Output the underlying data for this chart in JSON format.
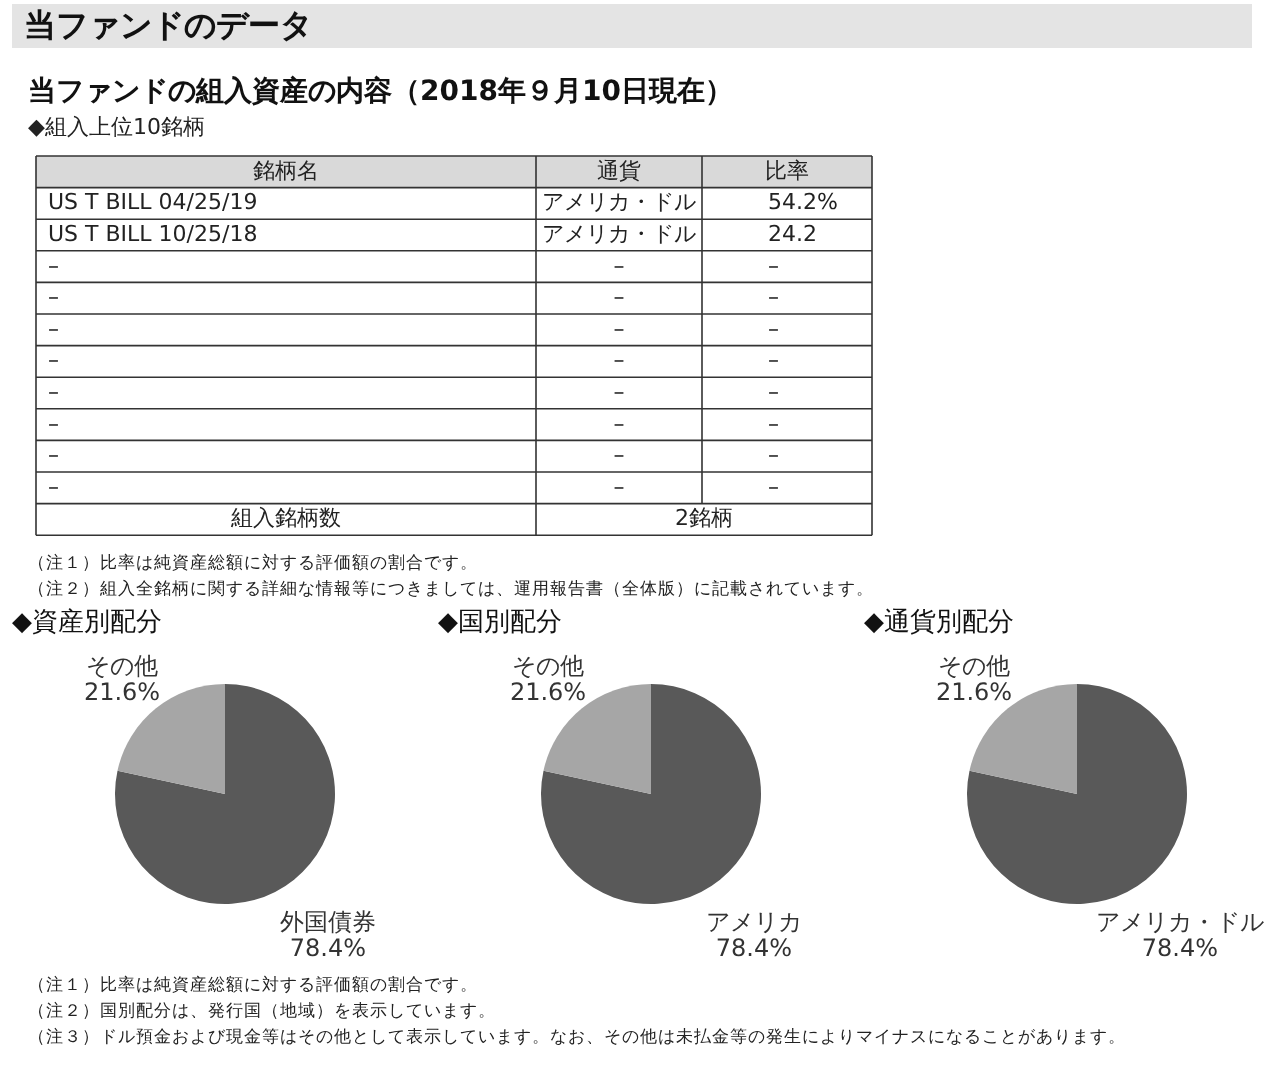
{
  "chart_data": [
    {
      "type": "other",
      "title": "当ファンドのデータ",
      "subtitle": "当ファンドの組入資産の内容（2018年９月10日現在）",
      "categories": [
        "銘柄名",
        "通貨",
        "比率"
      ],
      "cells": [
        [
          "US T BILL 04/25/19",
          "アメリカ・ドル",
          "54.2%"
        ],
        [
          "US T BILL 10/25/18",
          "アメリカ・ドル",
          "24.2"
        ],
        [
          "–",
          "–",
          "–"
        ],
        [
          "–",
          "–",
          "–"
        ],
        [
          "–",
          "–",
          "–"
        ],
        [
          "–",
          "–",
          "–"
        ],
        [
          "–",
          "–",
          "–"
        ],
        [
          "–",
          "–",
          "–"
        ],
        [
          "–",
          "–",
          "–"
        ],
        [
          "–",
          "–",
          "–"
        ],
        [
          "組入銘柄数",
          "2銘柄"
        ]
      ],
      "annotations": [
        "◆組入上位10銘柄",
        "（注１）比率は純資産総額に対する評価額の割合です。",
        "（注２）組入全銘柄に関する詳細な情報等につきましては、運用報告書（全体版）に記載されています。"
      ]
    },
    {
      "type": "pie",
      "title": "◆資産別配分",
      "categories": [
        "外国債券",
        "その他"
      ],
      "values": [
        78.4,
        21.6
      ],
      "colors": [
        "#595959",
        "#a6a6a6"
      ],
      "value_labels": [
        "78.4%",
        "21.6%"
      ]
    },
    {
      "type": "pie",
      "title": "◆国別配分",
      "categories": [
        "アメリカ",
        "その他"
      ],
      "values": [
        78.4,
        21.6
      ],
      "colors": [
        "#595959",
        "#a6a6a6"
      ],
      "value_labels": [
        "78.4%",
        "21.6%"
      ]
    },
    {
      "type": "pie",
      "title": "◆通貨別配分",
      "categories": [
        "アメリカ・ドル",
        "その他"
      ],
      "values": [
        78.4,
        21.6
      ],
      "colors": [
        "#595959",
        "#a6a6a6"
      ],
      "value_labels": [
        "78.4%",
        "21.6%"
      ],
      "annotations": [
        "（注１）比率は純資産総額に対する評価額の割合です。",
        "（注２）国別配分は、発行国（地域）を表示しています。",
        "（注３）ドル預金および現金等はその他として表示しています。なお、その他は未払金等の発生によりマイナスになることがあります。"
      ]
    }
  ]
}
